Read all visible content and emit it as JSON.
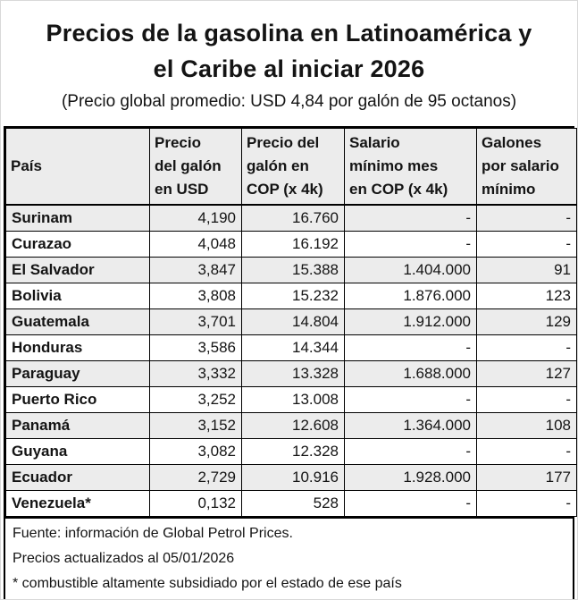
{
  "header": {
    "title_line1": "Precios de la gasolina en Latinoamérica y",
    "title_line2": "el Caribe al iniciar 2026",
    "subtitle": "(Precio global promedio: USD 4,84 por galón de 95 octanos)"
  },
  "table": {
    "header_bg": "#ececec",
    "stripe_bg": "#ececec",
    "border_color": "#000000",
    "header_lines": [
      [
        "País"
      ],
      [
        "Precio",
        "del galón",
        "en USD"
      ],
      [
        "Precio del",
        "galón en",
        "COP (x 4k)"
      ],
      [
        "Salario",
        "mínimo mes",
        "en COP (x 4k)"
      ],
      [
        "Galones",
        "por salario",
        "mínimo"
      ]
    ]
  },
  "footer": {
    "lines": [
      "Fuente: información de Global Petrol Prices.",
      "Precios actualizados al 05/01/2026",
      "* combustible altamente subsidiado por el estado de ese país"
    ]
  },
  "chart_data": {
    "type": "table",
    "title": "Precios de la gasolina en Latinoamérica y el Caribe al iniciar 2026",
    "subtitle": "(Precio global promedio: USD 4,84 por galón de 95 octanos)",
    "global_average_price_usd": "4,84",
    "columns": [
      "País",
      "Precio del galón en USD",
      "Precio del galón en COP (x 4k)",
      "Salario mínimo mes en COP (x 4k)",
      "Galones por salario mínimo"
    ],
    "rows": [
      [
        "Surinam",
        "4,190",
        "16.760",
        "-",
        "-"
      ],
      [
        "Curazao",
        "4,048",
        "16.192",
        "-",
        "-"
      ],
      [
        "El Salvador",
        "3,847",
        "15.388",
        "1.404.000",
        "91"
      ],
      [
        "Bolivia",
        "3,808",
        "15.232",
        "1.876.000",
        "123"
      ],
      [
        "Guatemala",
        "3,701",
        "14.804",
        "1.912.000",
        "129"
      ],
      [
        "Honduras",
        "3,586",
        "14.344",
        "-",
        "-"
      ],
      [
        "Paraguay",
        "3,332",
        "13.328",
        "1.688.000",
        "127"
      ],
      [
        "Puerto Rico",
        "3,252",
        "13.008",
        "-",
        "-"
      ],
      [
        "Panamá",
        "3,152",
        "12.608",
        "1.364.000",
        "108"
      ],
      [
        "Guyana",
        "3,082",
        "12.328",
        "-",
        "-"
      ],
      [
        "Ecuador",
        "2,729",
        "10.916",
        "1.928.000",
        "177"
      ],
      [
        "Venezuela*",
        "0,132",
        "528",
        "-",
        "-"
      ]
    ],
    "notes": [
      "Fuente: información de Global Petrol Prices.",
      "Precios actualizados al 05/01/2026",
      "* combustible altamente subsidiado por el estado de ese país"
    ]
  }
}
